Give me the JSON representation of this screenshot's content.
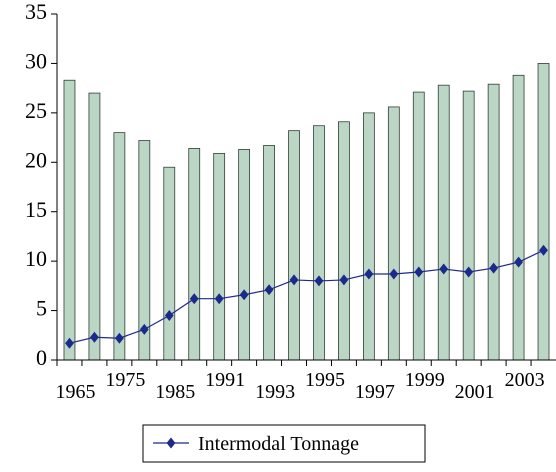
{
  "chart_data": {
    "type": "bar-line",
    "categories": [
      "1965",
      null,
      "1975",
      null,
      "1985",
      null,
      "1991",
      null,
      "1993",
      null,
      "1995",
      null,
      "1997",
      null,
      "1999",
      null,
      "2001",
      null,
      "2003",
      null
    ],
    "series": [
      {
        "type": "bar",
        "color": "#bcd6c6",
        "values": [
          28.3,
          27.0,
          23.0,
          22.2,
          19.5,
          21.4,
          20.9,
          21.3,
          21.7,
          23.2,
          23.7,
          24.1,
          25.0,
          25.6,
          27.1,
          27.8,
          27.2,
          27.9,
          28.8,
          30.0
        ]
      },
      {
        "type": "line",
        "name": "Intermodal Tonnage",
        "color": "#1c2a8c",
        "values": [
          1.7,
          2.3,
          2.2,
          3.1,
          4.5,
          6.2,
          6.2,
          6.6,
          7.1,
          8.1,
          8.0,
          8.1,
          8.7,
          8.7,
          8.9,
          9.2,
          8.9,
          9.3,
          9.9,
          11.1
        ]
      }
    ],
    "ylim": [
      0,
      35
    ],
    "yticks": [
      0,
      5,
      10,
      15,
      20,
      25,
      30,
      35
    ],
    "legend": "bottom"
  }
}
